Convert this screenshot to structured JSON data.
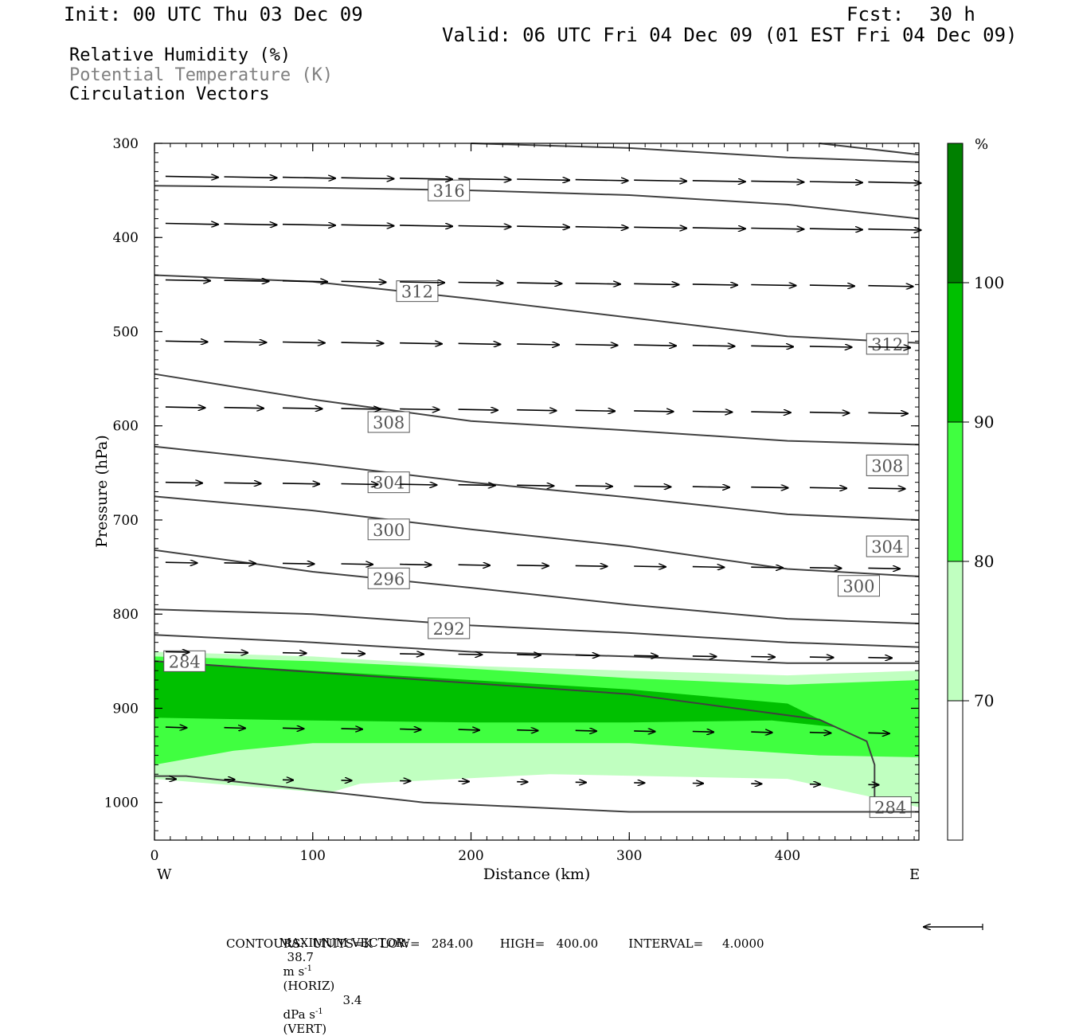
{
  "header": {
    "init": "Init: 00 UTC Thu 03 Dec 09",
    "fcst_label": "Fcst:",
    "fcst_value": "30 h",
    "valid": "Valid: 06 UTC Fri 04 Dec 09 (01 EST Fri 04 Dec 09)"
  },
  "legend": {
    "rh": "Relative Humidity (%)",
    "theta": "Potential Temperature (K)",
    "vectors": "Circulation Vectors"
  },
  "colors": {
    "rh70": "#c0ffc0",
    "rh80": "#40ff40",
    "rh90": "#00c000",
    "rh100": "#008000",
    "contour": "#404040",
    "theta_text": "#808080"
  },
  "footer": {
    "max_vector_label": "MAXIMUM VECTOR:",
    "max_horiz_value": "38.7",
    "max_horiz_units": "m s",
    "max_horiz_exp": "-1",
    "max_horiz_tag": "(HORIZ)",
    "max_vert_value": "3.4",
    "max_vert_units": "dPa s",
    "max_vert_exp": "-1",
    "max_vert_tag": "(VERT)",
    "contours_line": "CONTOURS:  UNITS=K  LOW=   284.00       HIGH=   400.00        INTERVAL=     4.0000"
  },
  "chart_data": {
    "type": "cross-section",
    "xlabel": "Distance (km)",
    "ylabel": "Pressure (hPa)",
    "xlim": [
      0,
      483
    ],
    "ylim": [
      1040,
      300
    ],
    "x_ticks": [
      "0",
      "100",
      "200",
      "300",
      "400"
    ],
    "y_ticks": [
      "300",
      "400",
      "500",
      "600",
      "700",
      "800",
      "900",
      "1000"
    ],
    "x_end_labels": {
      "left": "W",
      "right": "E"
    },
    "colorbar": {
      "unit": "%",
      "levels": [
        "70",
        "80",
        "90",
        "100"
      ],
      "colors": [
        "#ffffff",
        "#c0ffc0",
        "#40ff40",
        "#00c000",
        "#008000"
      ]
    },
    "rh_regions": [
      {
        "level": 70,
        "color": "#c0ffc0",
        "upper": [
          [
            0,
            840
          ],
          [
            100,
            845
          ],
          [
            200,
            855
          ],
          [
            300,
            860
          ],
          [
            400,
            865
          ],
          [
            483,
            860
          ]
        ],
        "lower": [
          [
            0,
            975
          ],
          [
            110,
            990
          ],
          [
            130,
            980
          ],
          [
            250,
            970
          ],
          [
            400,
            975
          ],
          [
            483,
            1005
          ]
        ]
      },
      {
        "level": 80,
        "color": "#40ff40",
        "upper": [
          [
            0,
            845
          ],
          [
            100,
            850
          ],
          [
            200,
            858
          ],
          [
            300,
            868
          ],
          [
            400,
            875
          ],
          [
            483,
            870
          ]
        ],
        "lower": [
          [
            0,
            960
          ],
          [
            50,
            945
          ],
          [
            100,
            937
          ],
          [
            300,
            937
          ],
          [
            420,
            950
          ],
          [
            483,
            952
          ]
        ]
      },
      {
        "level": 90,
        "color": "#00c000",
        "upper": [
          [
            0,
            850
          ],
          [
            100,
            860
          ],
          [
            200,
            870
          ],
          [
            300,
            880
          ],
          [
            400,
            895
          ],
          [
            430,
            920
          ]
        ],
        "lower": [
          [
            0,
            910
          ],
          [
            100,
            913
          ],
          [
            200,
            915
          ],
          [
            300,
            915
          ],
          [
            390,
            913
          ]
        ]
      }
    ],
    "isentropes": [
      {
        "theta": 284,
        "points": [
          [
            0,
            850
          ],
          [
            300,
            885
          ],
          [
            420,
            912
          ],
          [
            450,
            935
          ],
          [
            455,
            960
          ],
          [
            455,
            995
          ]
        ],
        "labels": [
          [
            19,
            850
          ],
          [
            465,
            1005
          ]
        ]
      },
      {
        "theta": 284,
        "points": [
          [
            0,
            972
          ],
          [
            20,
            972
          ],
          [
            170,
            1000
          ],
          [
            300,
            1010
          ],
          [
            483,
            1010
          ]
        ],
        "labels": []
      },
      {
        "theta": 288,
        "points": [
          [
            0,
            822
          ],
          [
            100,
            830
          ],
          [
            200,
            840
          ],
          [
            300,
            845
          ],
          [
            400,
            852
          ],
          [
            483,
            852
          ]
        ],
        "labels": []
      },
      {
        "theta": 292,
        "points": [
          [
            0,
            795
          ],
          [
            100,
            800
          ],
          [
            200,
            812
          ],
          [
            300,
            820
          ],
          [
            400,
            830
          ],
          [
            483,
            835
          ]
        ],
        "labels": [
          [
            186,
            815
          ]
        ]
      },
      {
        "theta": 296,
        "points": [
          [
            0,
            732
          ],
          [
            100,
            755
          ],
          [
            200,
            772
          ],
          [
            300,
            790
          ],
          [
            400,
            805
          ],
          [
            483,
            810
          ]
        ],
        "labels": [
          [
            148,
            762
          ]
        ]
      },
      {
        "theta": 300,
        "points": [
          [
            0,
            675
          ],
          [
            100,
            690
          ],
          [
            200,
            710
          ],
          [
            300,
            728
          ],
          [
            400,
            752
          ],
          [
            483,
            760
          ]
        ],
        "labels": [
          [
            148,
            710
          ],
          [
            445,
            770
          ]
        ]
      },
      {
        "theta": 304,
        "points": [
          [
            0,
            622
          ],
          [
            100,
            640
          ],
          [
            200,
            660
          ],
          [
            300,
            676
          ],
          [
            400,
            694
          ],
          [
            483,
            700
          ]
        ],
        "labels": [
          [
            148,
            660
          ],
          [
            463,
            728
          ]
        ]
      },
      {
        "theta": 308,
        "points": [
          [
            0,
            545
          ],
          [
            100,
            572
          ],
          [
            200,
            595
          ],
          [
            300,
            605
          ],
          [
            400,
            616
          ],
          [
            483,
            620
          ]
        ],
        "labels": [
          [
            148,
            596
          ],
          [
            463,
            642
          ]
        ]
      },
      {
        "theta": 312,
        "points": [
          [
            0,
            440
          ],
          [
            100,
            447
          ],
          [
            200,
            465
          ],
          [
            300,
            485
          ],
          [
            400,
            505
          ],
          [
            483,
            512
          ]
        ],
        "labels": [
          [
            166,
            457
          ],
          [
            463,
            513
          ]
        ]
      },
      {
        "theta": 316,
        "points": [
          [
            0,
            345
          ],
          [
            100,
            347
          ],
          [
            200,
            350
          ],
          [
            300,
            355
          ],
          [
            400,
            365
          ],
          [
            483,
            380
          ]
        ],
        "labels": [
          [
            186,
            350
          ]
        ]
      },
      {
        "theta": 320,
        "points": [
          [
            200,
            300
          ],
          [
            300,
            305
          ],
          [
            400,
            315
          ],
          [
            483,
            320
          ]
        ],
        "labels": []
      },
      {
        "theta": 324,
        "points": [
          [
            420,
            300
          ],
          [
            483,
            312
          ]
        ],
        "labels": []
      }
    ],
    "vectors_columns_x": [
      7,
      44,
      81,
      118,
      155,
      192,
      229,
      266,
      303,
      340,
      377,
      414,
      451
    ],
    "vectors_rows": [
      {
        "p": 335,
        "u": 1.0,
        "w": 0.02
      },
      {
        "p": 385,
        "u": 1.0,
        "w": 0.02
      },
      {
        "p": 445,
        "u": 0.85,
        "w": 0.02
      },
      {
        "p": 510,
        "u": 0.8,
        "w": 0.02
      },
      {
        "p": 580,
        "u": 0.75,
        "w": 0.02
      },
      {
        "p": 660,
        "u": 0.7,
        "w": 0.02
      },
      {
        "p": 745,
        "u": 0.6,
        "w": 0.02
      },
      {
        "p": 840,
        "u": 0.45,
        "w": 0.02
      },
      {
        "p": 920,
        "u": 0.4,
        "w": 0.03
      },
      {
        "p": 975,
        "u": 0.2,
        "w": 0.02
      }
    ]
  }
}
